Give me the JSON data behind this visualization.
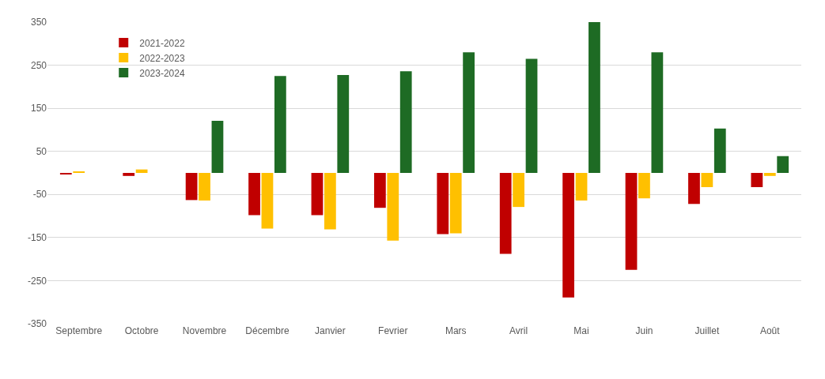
{
  "chart_data": {
    "type": "bar",
    "categories": [
      "Septembre",
      "Octobre",
      "Novembre",
      "Décembre",
      "Janvier",
      "Fevrier",
      "Mars",
      "Avril",
      "Mai",
      "Juin",
      "Juillet",
      "Août"
    ],
    "series": [
      {
        "name": "2021-2022",
        "color": "#c00000",
        "values": [
          -2,
          -7,
          -63,
          -98,
          -98,
          -81,
          -142,
          -188,
          -289,
          -225,
          -72,
          -33
        ]
      },
      {
        "name": "2022-2023",
        "color": "#ffc000",
        "values": [
          3,
          8,
          -64,
          -129,
          -131,
          -157,
          -140,
          -79,
          -64,
          -59,
          -33,
          -7
        ]
      },
      {
        "name": "2023-2024",
        "color": "#1e6b24",
        "values": [
          null,
          null,
          121,
          225,
          227,
          236,
          280,
          265,
          350,
          280,
          103,
          39
        ]
      }
    ],
    "ylim": [
      -350,
      350
    ],
    "yticks": [
      -350,
      -250,
      -150,
      -50,
      50,
      150,
      250,
      350
    ],
    "grid": "y",
    "legend": "top left"
  }
}
